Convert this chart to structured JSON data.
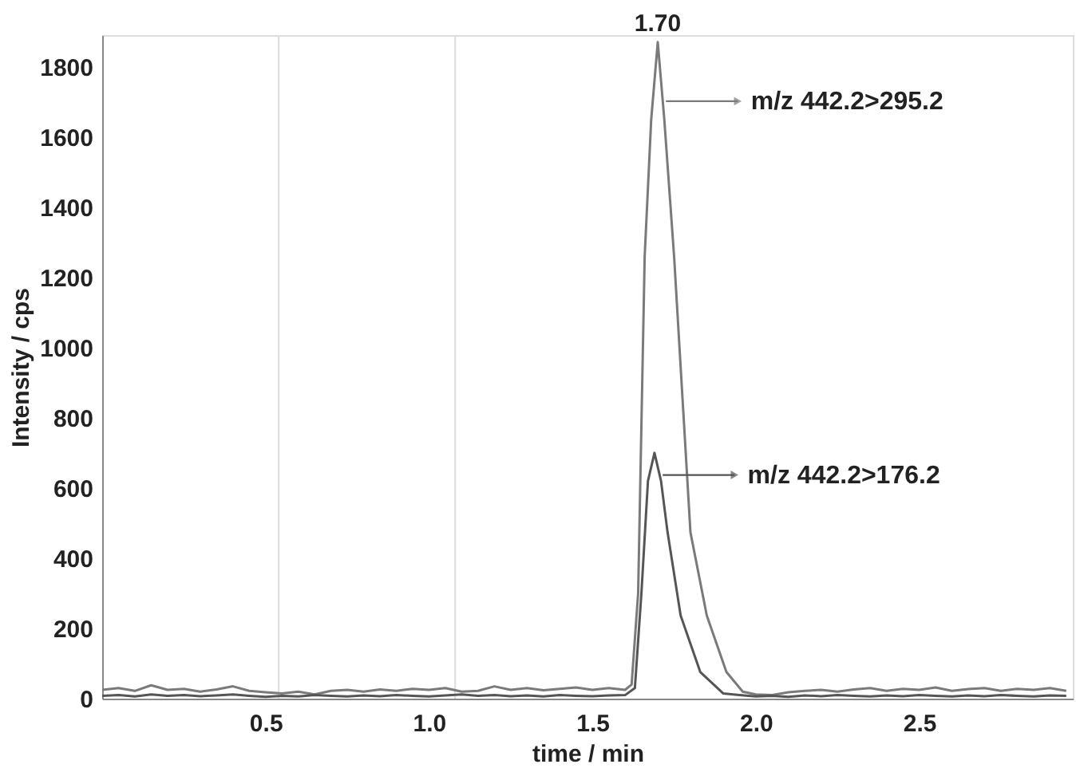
{
  "chart_data": {
    "type": "line",
    "xlabel": "time / min",
    "ylabel": "Intensity / cps",
    "xlim": [
      0,
      2.97
    ],
    "xticks": [
      0.5,
      {
        "value": 1,
        "label": "1.0"
      },
      1.5,
      {
        "value": 2,
        "label": "2.0"
      },
      2.5
    ],
    "ylim": [
      0,
      1890
    ],
    "yticks": [
      0,
      200,
      400,
      600,
      800,
      1000,
      1200,
      1400,
      1600,
      1800
    ],
    "grid": false,
    "legend": "right",
    "marker": "none",
    "line_style": "solid",
    "ref_lines": [
      {
        "axis": "x",
        "value": 0.54,
        "label": null,
        "color": "#dddddd"
      },
      {
        "axis": "x",
        "value": 1.08,
        "label": null,
        "color": "#dddddd"
      }
    ],
    "annotations": [
      {
        "text": "1.70",
        "x": 1.7,
        "y": 1870
      }
    ],
    "series": [
      {
        "name": "m/z 442.2>295.2",
        "color": "#7a7a7a",
        "x": [
          0,
          0.05,
          0.1,
          0.15,
          0.2,
          0.25,
          0.3,
          0.35,
          0.4,
          0.45,
          0.5,
          0.55,
          0.6,
          0.65,
          0.7,
          0.75,
          0.8,
          0.85,
          0.9,
          0.95,
          1.0,
          1.05,
          1.1,
          1.15,
          1.2,
          1.25,
          1.3,
          1.35,
          1.4,
          1.45,
          1.5,
          1.55,
          1.6,
          1.62,
          1.64,
          1.66,
          1.68,
          1.7,
          1.72,
          1.75,
          1.8,
          1.85,
          1.91,
          1.96,
          2.0,
          2.05,
          2.1,
          2.15,
          2.2,
          2.25,
          2.3,
          2.35,
          2.4,
          2.45,
          2.5,
          2.55,
          2.6,
          2.65,
          2.7,
          2.75,
          2.8,
          2.85,
          2.9,
          2.95
        ],
        "values": [
          25,
          30,
          22,
          38,
          25,
          28,
          20,
          26,
          35,
          22,
          18,
          15,
          20,
          12,
          22,
          25,
          20,
          26,
          22,
          28,
          25,
          30,
          20,
          22,
          35,
          25,
          30,
          24,
          28,
          32,
          25,
          30,
          25,
          40,
          300,
          1260,
          1650,
          1870,
          1650,
          1260,
          474,
          237,
          76,
          20,
          12,
          10,
          18,
          22,
          25,
          20,
          26,
          30,
          22,
          28,
          25,
          32,
          22,
          27,
          30,
          22,
          28,
          25,
          30,
          22
        ]
      },
      {
        "name": "m/z 442.2>176.2",
        "color": "#555555",
        "x": [
          0,
          0.05,
          0.1,
          0.15,
          0.2,
          0.25,
          0.3,
          0.35,
          0.4,
          0.45,
          0.5,
          0.55,
          0.6,
          0.65,
          0.7,
          0.75,
          0.8,
          0.85,
          0.9,
          0.95,
          1.0,
          1.05,
          1.1,
          1.15,
          1.2,
          1.25,
          1.3,
          1.35,
          1.4,
          1.45,
          1.5,
          1.55,
          1.6,
          1.63,
          1.65,
          1.67,
          1.69,
          1.71,
          1.73,
          1.77,
          1.83,
          1.9,
          1.95,
          2.0,
          2.05,
          2.1,
          2.15,
          2.2,
          2.25,
          2.3,
          2.35,
          2.4,
          2.45,
          2.5,
          2.55,
          2.6,
          2.65,
          2.7,
          2.75,
          2.8,
          2.85,
          2.9,
          2.95
        ],
        "values": [
          8,
          10,
          6,
          12,
          8,
          10,
          7,
          9,
          12,
          8,
          5,
          8,
          6,
          10,
          8,
          6,
          9,
          7,
          10,
          8,
          6,
          9,
          12,
          8,
          10,
          7,
          9,
          6,
          10,
          8,
          7,
          9,
          10,
          30,
          300,
          620,
          700,
          620,
          474,
          237,
          76,
          15,
          10,
          6,
          8,
          5,
          9,
          7,
          10,
          8,
          6,
          9,
          7,
          10,
          8,
          6,
          9,
          7,
          10,
          8,
          6,
          9,
          8
        ]
      }
    ]
  }
}
